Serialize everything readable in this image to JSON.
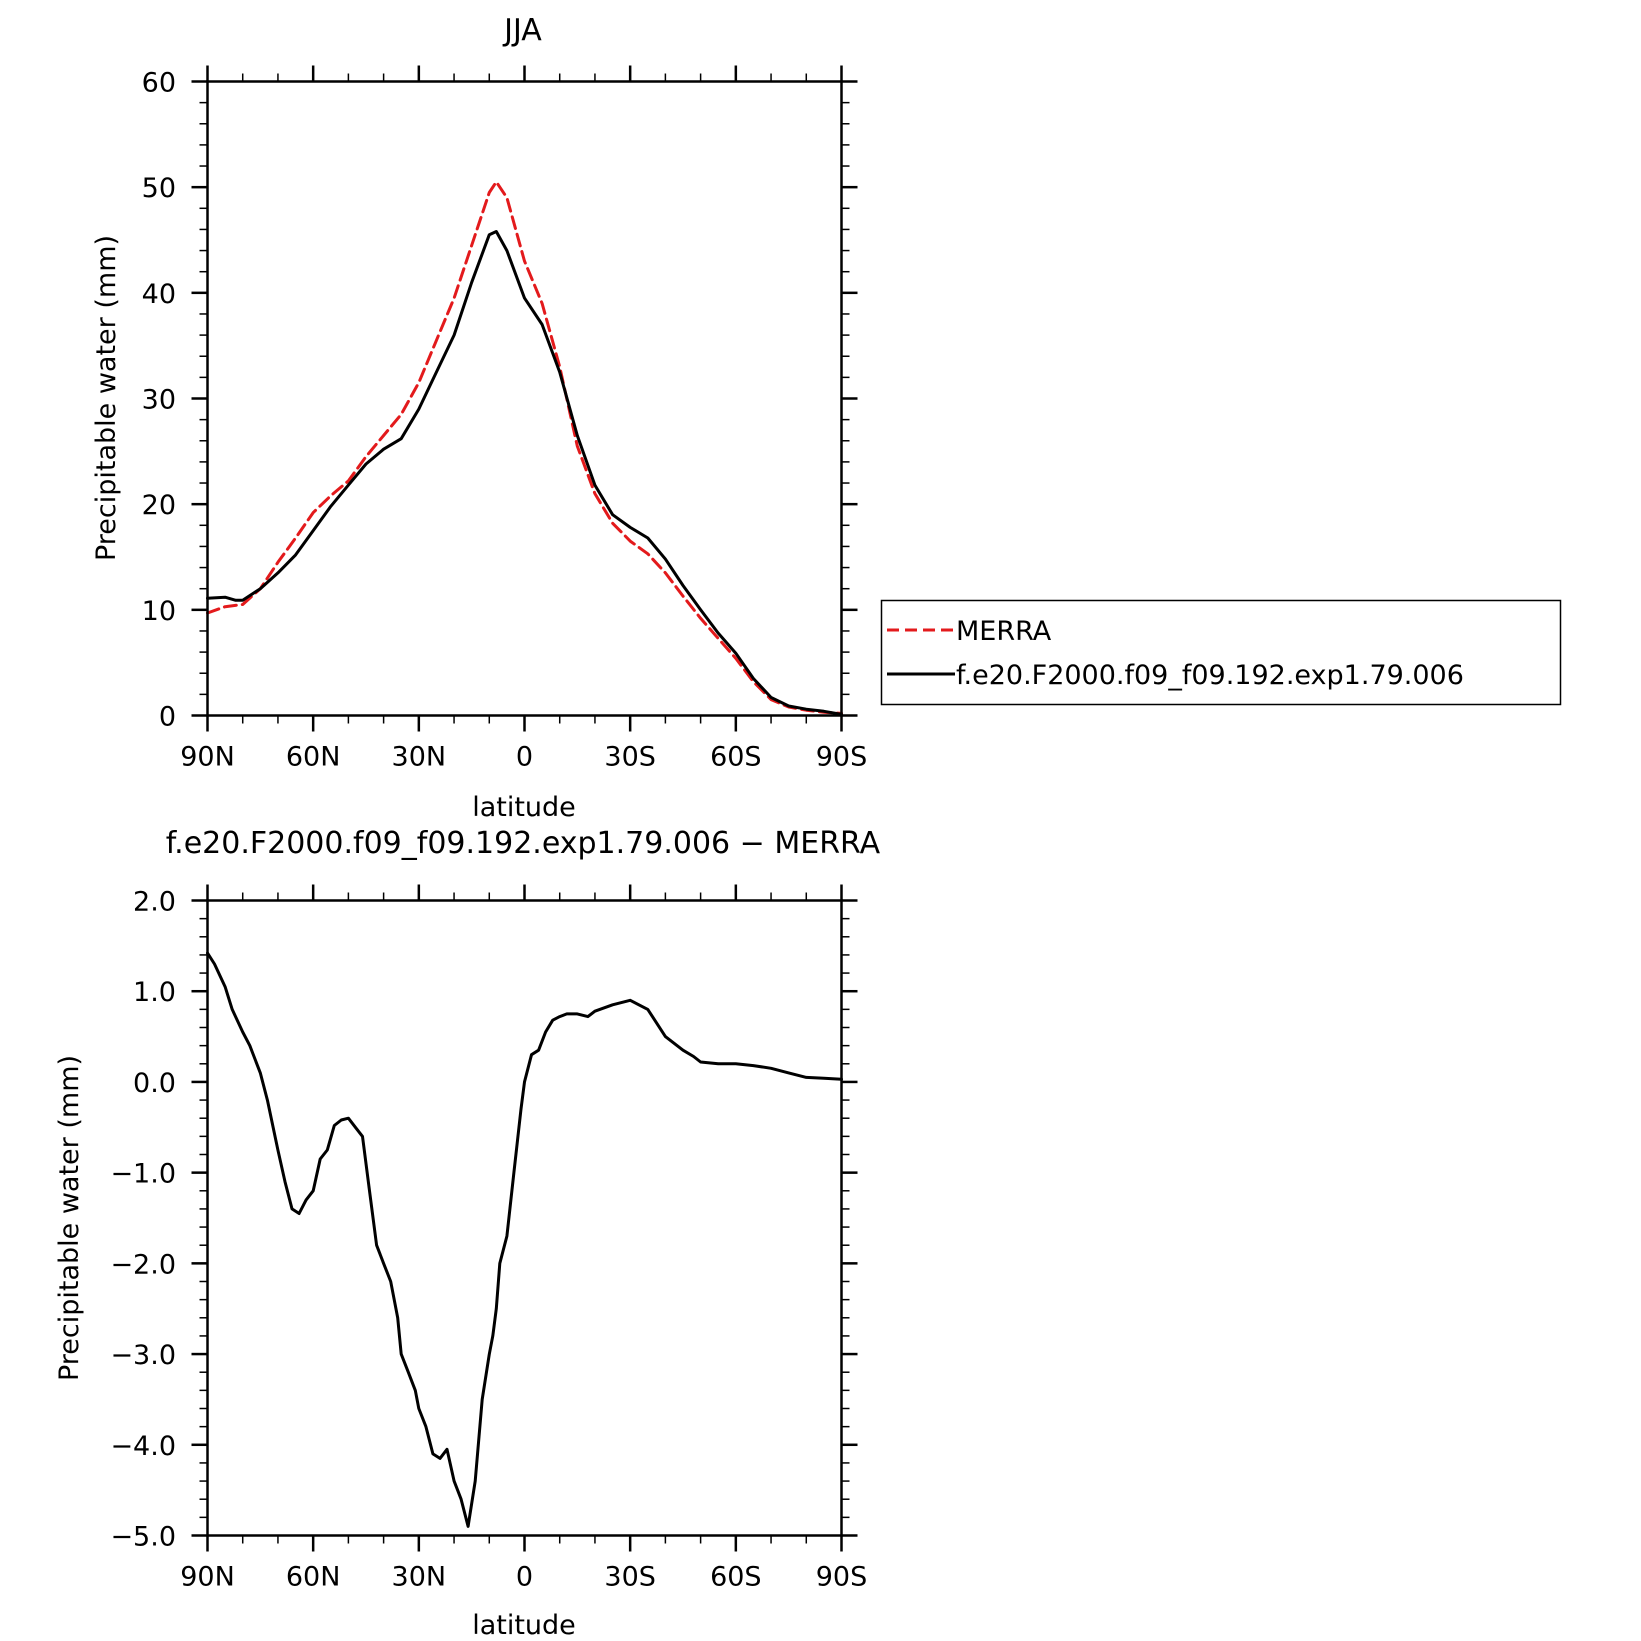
{
  "chart_data": [
    {
      "type": "line",
      "title": "JJA",
      "xlabel": "latitude",
      "ylabel": "Precipitable water (mm)",
      "xlim": [
        90,
        -90
      ],
      "ylim": [
        0,
        60
      ],
      "x_ticks": [
        90,
        60,
        30,
        0,
        -30,
        -60,
        -90
      ],
      "x_tick_labels": [
        "90N",
        "60N",
        "30N",
        "0",
        "30S",
        "60S",
        "90S"
      ],
      "y_ticks": [
        0,
        10,
        20,
        30,
        40,
        50,
        60
      ],
      "y_tick_labels": [
        "0",
        "10",
        "20",
        "30",
        "40",
        "50",
        "60"
      ],
      "grid": false,
      "legend_position": "right",
      "series": [
        {
          "name": "MERRA",
          "color": "#e31a1c",
          "style": "dashed",
          "x": [
            90,
            85,
            80,
            75,
            70,
            65,
            60,
            55,
            50,
            45,
            40,
            35,
            30,
            25,
            20,
            15,
            10,
            8,
            5,
            0,
            -5,
            -10,
            -15,
            -20,
            -25,
            -30,
            -35,
            -40,
            -45,
            -50,
            -55,
            -60,
            -65,
            -70,
            -75,
            -80,
            -85,
            -90
          ],
          "y": [
            9.7,
            10.3,
            10.5,
            12.0,
            14.5,
            16.8,
            19.2,
            20.8,
            22.2,
            24.5,
            26.5,
            28.5,
            31.5,
            35.5,
            39.5,
            44.5,
            49.5,
            50.5,
            49.0,
            43.0,
            39.0,
            33.0,
            25.5,
            21.0,
            18.2,
            16.5,
            15.3,
            13.5,
            11.3,
            9.2,
            7.3,
            5.4,
            3.2,
            1.5,
            0.8,
            0.5,
            0.3,
            0.2
          ]
        },
        {
          "name": "f.e20.F2000.f09_f09.192.exp1.79.006",
          "color": "#000000",
          "style": "solid",
          "x": [
            90,
            85,
            82,
            80,
            75,
            70,
            65,
            60,
            55,
            50,
            45,
            40,
            35,
            30,
            25,
            20,
            15,
            10,
            8,
            5,
            0,
            -5,
            -10,
            -15,
            -20,
            -25,
            -30,
            -35,
            -40,
            -45,
            -50,
            -55,
            -60,
            -65,
            -70,
            -75,
            -80,
            -85,
            -90
          ],
          "y": [
            11.1,
            11.2,
            10.9,
            10.9,
            12.0,
            13.5,
            15.2,
            17.5,
            19.8,
            21.8,
            23.8,
            25.2,
            26.2,
            29.0,
            32.5,
            36.0,
            41.0,
            45.5,
            45.8,
            44.0,
            39.5,
            37.0,
            32.5,
            26.5,
            21.8,
            19.0,
            17.8,
            16.8,
            14.8,
            12.3,
            10.0,
            7.8,
            5.9,
            3.5,
            1.7,
            0.9,
            0.6,
            0.4,
            0.1
          ]
        }
      ]
    },
    {
      "type": "line",
      "title": "f.e20.F2000.f09_f09.192.exp1.79.006 − MERRA",
      "xlabel": "latitude",
      "ylabel": "Precipitable water (mm)",
      "xlim": [
        90,
        -90
      ],
      "ylim": [
        -5,
        2
      ],
      "x_ticks": [
        90,
        60,
        30,
        0,
        -30,
        -60,
        -90
      ],
      "x_tick_labels": [
        "90N",
        "60N",
        "30N",
        "0",
        "30S",
        "60S",
        "90S"
      ],
      "y_ticks": [
        2,
        1,
        0,
        -1,
        -2,
        -3,
        -4,
        -5
      ],
      "y_tick_labels": [
        "2.0",
        "1.0",
        "0.0",
        "−1.0",
        "−2.0",
        "−3.0",
        "−4.0",
        "−5.0"
      ],
      "grid": false,
      "series": [
        {
          "color": "#000000",
          "style": "solid",
          "x": [
            90,
            88,
            85,
            83,
            80,
            78,
            75,
            73,
            70,
            68,
            66,
            64,
            62,
            60,
            58,
            56,
            54,
            52,
            50,
            48,
            46,
            44,
            42,
            40,
            38,
            36,
            35,
            33,
            31,
            30,
            28,
            26,
            24,
            22,
            20,
            18,
            16,
            14,
            12,
            10,
            9,
            8,
            7,
            5,
            3,
            1,
            0,
            -2,
            -4,
            -6,
            -8,
            -10,
            -12,
            -15,
            -18,
            -20,
            -25,
            -30,
            -35,
            -40,
            -45,
            -48,
            -50,
            -55,
            -60,
            -65,
            -70,
            -75,
            -80,
            -85,
            -90
          ],
          "y": [
            1.42,
            1.3,
            1.05,
            0.8,
            0.55,
            0.4,
            0.1,
            -0.2,
            -0.75,
            -1.1,
            -1.4,
            -1.45,
            -1.3,
            -1.2,
            -0.85,
            -0.75,
            -0.48,
            -0.42,
            -0.4,
            -0.5,
            -0.6,
            -1.2,
            -1.8,
            -2.0,
            -2.2,
            -2.6,
            -3.0,
            -3.2,
            -3.4,
            -3.6,
            -3.8,
            -4.1,
            -4.15,
            -4.05,
            -4.4,
            -4.6,
            -4.9,
            -4.4,
            -3.5,
            -3.0,
            -2.8,
            -2.5,
            -2.0,
            -1.7,
            -1.0,
            -0.3,
            0.0,
            0.3,
            0.35,
            0.55,
            0.68,
            0.72,
            0.75,
            0.75,
            0.72,
            0.78,
            0.85,
            0.9,
            0.8,
            0.5,
            0.35,
            0.28,
            0.22,
            0.2,
            0.2,
            0.18,
            0.15,
            0.1,
            0.05,
            0.04,
            0.03
          ]
        }
      ]
    }
  ]
}
